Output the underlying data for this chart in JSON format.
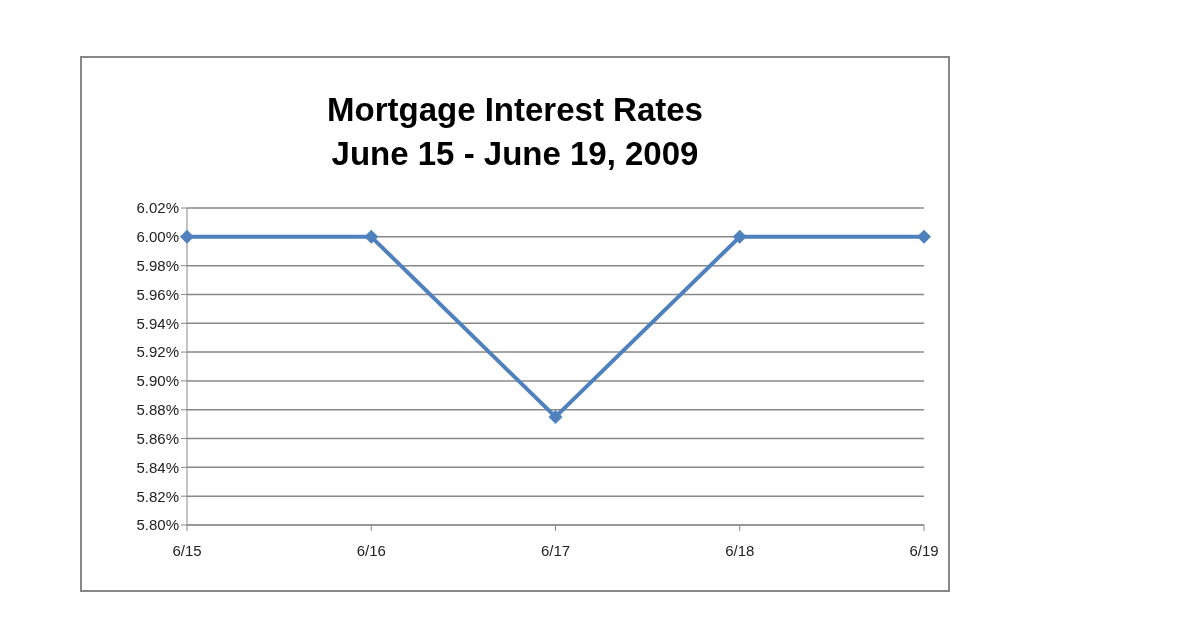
{
  "chart_data": {
    "type": "line",
    "title": "Mortgage Interest Rates\nJune 15 - June 19, 2009",
    "categories": [
      "6/15",
      "6/16",
      "6/17",
      "6/18",
      "6/19"
    ],
    "series": [
      {
        "color": "#4f81bd",
        "values": [
          6.0,
          6.0,
          5.875,
          6.0,
          6.0
        ]
      }
    ],
    "ylim": [
      5.8,
      6.02
    ],
    "yticks": [
      {
        "value": 5.8,
        "label": "5.80%"
      },
      {
        "value": 5.82,
        "label": "5.82%"
      },
      {
        "value": 5.84,
        "label": "5.84%"
      },
      {
        "value": 5.86,
        "label": "5.86%"
      },
      {
        "value": 5.88,
        "label": "5.88%"
      },
      {
        "value": 5.9,
        "label": "5.90%"
      },
      {
        "value": 5.92,
        "label": "5.92%"
      },
      {
        "value": 5.94,
        "label": "5.94%"
      },
      {
        "value": 5.96,
        "label": "5.96%"
      },
      {
        "value": 5.98,
        "label": "5.98%"
      },
      {
        "value": 6.0,
        "label": "6.00%"
      },
      {
        "value": 6.02,
        "label": "6.02%"
      }
    ],
    "grid": "y",
    "legend": false,
    "marker": "diamond",
    "line_style": "solid"
  }
}
